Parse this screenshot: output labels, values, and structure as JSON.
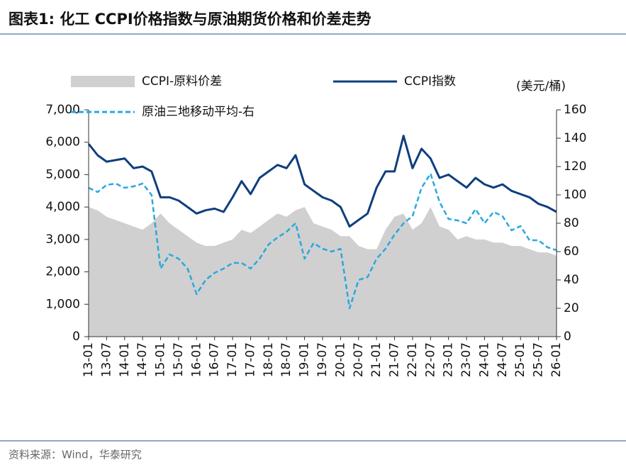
{
  "chart_data": {
    "type": "line",
    "title": "图表1:  化工 CCPI价格指数与原油期货价格和价差走势",
    "y2_label": "(美元/桶)",
    "source": "资料来源：Wind，华泰研究",
    "categories": [
      "13-01",
      null,
      "13-07",
      null,
      "14-01",
      null,
      "14-07",
      null,
      "15-01",
      null,
      "15-07",
      null,
      "16-01",
      null,
      "16-07",
      null,
      "17-01",
      null,
      "17-07",
      null,
      "18-01",
      null,
      "18-07",
      null,
      "19-01",
      null,
      "19-07",
      null,
      "20-01",
      null,
      "20-07",
      null,
      "21-01",
      null,
      "21-07",
      null,
      "22-01",
      null,
      "22-07",
      null,
      "23-01",
      null,
      "23-07",
      null,
      "24-01",
      null,
      "24-07",
      null,
      "25-01",
      null,
      "25-07",
      null,
      "26-01"
    ],
    "series": [
      {
        "name": "CCPI-原料价差",
        "kind": "area",
        "color": "#d0d0d0",
        "values": [
          4000,
          3900,
          3700,
          3600,
          3500,
          3400,
          3300,
          3500,
          3800,
          3500,
          3300,
          3100,
          2900,
          2800,
          2800,
          2900,
          3000,
          3300,
          3200,
          3400,
          3600,
          3800,
          3700,
          3900,
          4000,
          3500,
          3400,
          3300,
          3100,
          3100,
          2800,
          2700,
          2700,
          3300,
          3700,
          3800,
          3300,
          3500,
          4000,
          3400,
          3300,
          3000,
          3100,
          3000,
          3000,
          2900,
          2900,
          2800,
          2800,
          2700,
          2600,
          2600,
          2500
        ]
      },
      {
        "name": "CCPI指数",
        "kind": "line",
        "color": "#0f3e7e",
        "values": [
          5950,
          5600,
          5400,
          5450,
          5500,
          5200,
          5250,
          5100,
          4300,
          4300,
          4200,
          4000,
          3800,
          3900,
          3950,
          3850,
          4300,
          4800,
          4400,
          4900,
          5100,
          5300,
          5200,
          5600,
          4700,
          4500,
          4300,
          4200,
          4000,
          3400,
          3600,
          3800,
          4600,
          5100,
          5100,
          6200,
          5200,
          5800,
          5500,
          4900,
          5000,
          4800,
          4600,
          4900,
          4700,
          4600,
          4700,
          4500,
          4400,
          4300,
          4100,
          4000,
          3850
        ]
      },
      {
        "name": "原油三地移动平均-右",
        "kind": "dashed",
        "color": "#29a8e0",
        "axis": "y2",
        "values": [
          105,
          102,
          107,
          108,
          105,
          106,
          108,
          100,
          48,
          58,
          55,
          48,
          30,
          40,
          45,
          48,
          52,
          52,
          48,
          55,
          65,
          70,
          74,
          80,
          55,
          66,
          62,
          60,
          62,
          20,
          40,
          42,
          55,
          62,
          72,
          80,
          85,
          105,
          115,
          95,
          83,
          82,
          80,
          90,
          80,
          88,
          85,
          75,
          78,
          68,
          68,
          63,
          61
        ]
      }
    ],
    "ylim": [
      0,
      7000
    ],
    "yticks": [
      0,
      {
        "value": 1000,
        "label": "1,000"
      },
      {
        "value": 2000,
        "label": "2,000"
      },
      {
        "value": 3000,
        "label": "3,000"
      },
      {
        "value": 4000,
        "label": "4,000"
      },
      {
        "value": 5000,
        "label": "5,000"
      },
      {
        "value": 6000,
        "label": "6,000"
      },
      {
        "value": 7000,
        "label": "7,000"
      }
    ],
    "y2lim": [
      0,
      160
    ],
    "y2ticks": [
      0,
      20,
      40,
      60,
      80,
      100,
      120,
      140,
      160
    ]
  }
}
